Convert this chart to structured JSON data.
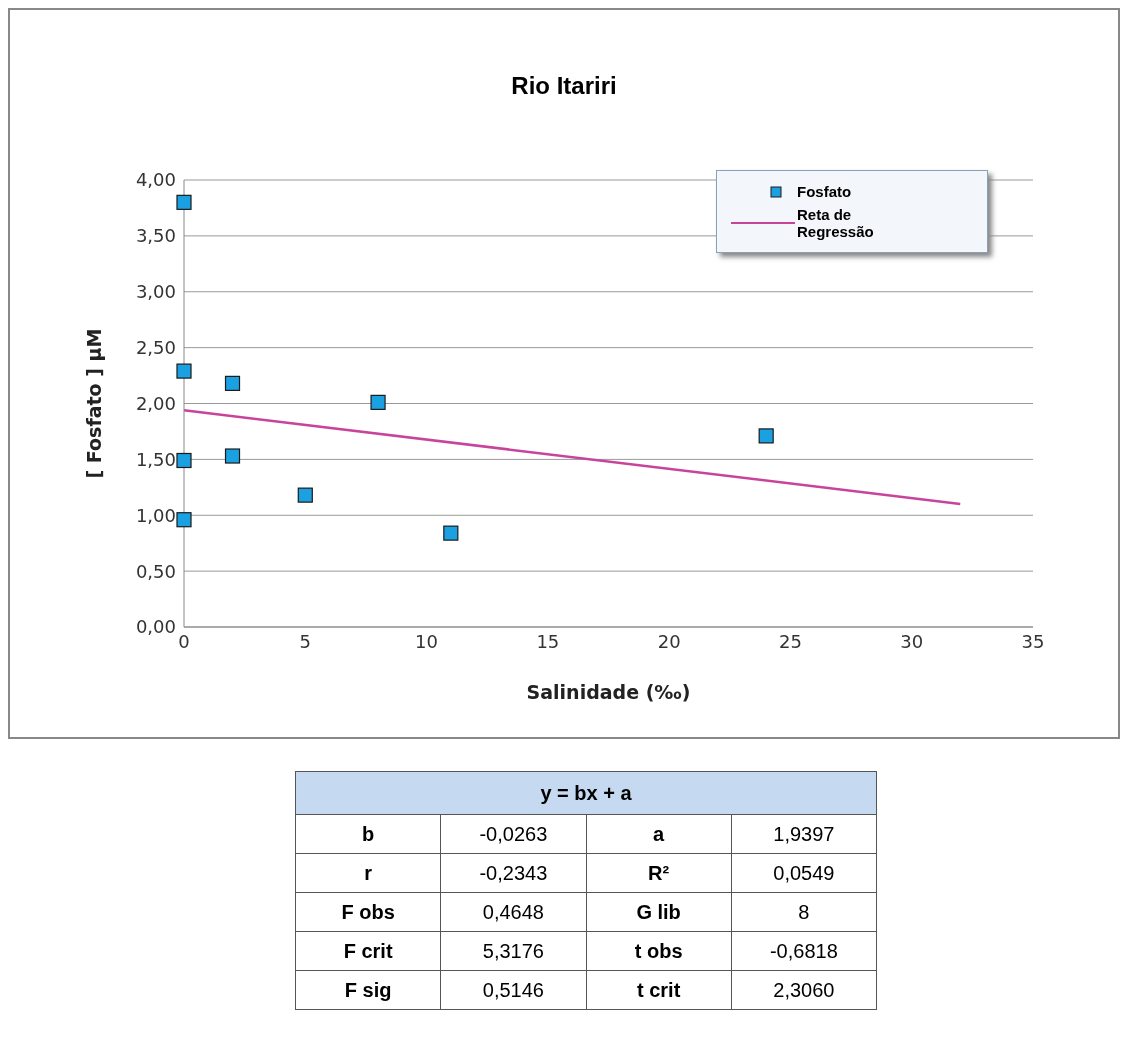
{
  "chart_data": {
    "type": "scatter",
    "title": "Rio Itariri",
    "xlabel": "Salinidade (‰)",
    "ylabel": "[ Fosfato ] µM",
    "xlim": [
      0,
      35
    ],
    "xticks": [
      0,
      5,
      10,
      15,
      20,
      25,
      30,
      35
    ],
    "ylim": [
      0,
      4
    ],
    "yticks": [
      {
        "value": 0,
        "label": "0,00"
      },
      {
        "value": 0.5,
        "label": "0,50"
      },
      {
        "value": 1,
        "label": "1,00"
      },
      {
        "value": 1.5,
        "label": "1,50"
      },
      {
        "value": 2,
        "label": "2,00"
      },
      {
        "value": 2.5,
        "label": "2,50"
      },
      {
        "value": 3,
        "label": "3,00"
      },
      {
        "value": 3.5,
        "label": "3,50"
      },
      {
        "value": 4,
        "label": "4,00"
      }
    ],
    "grid": "y",
    "legend": "top right",
    "series": [
      {
        "name": "Fosfato",
        "marker": "square",
        "color": "#1ba1e2",
        "x": [
          0,
          0,
          2,
          8,
          2,
          0,
          5,
          0,
          11,
          24
        ],
        "values": [
          3.8,
          2.29,
          2.18,
          2.01,
          1.53,
          1.49,
          1.18,
          0.96,
          0.84,
          1.71
        ]
      },
      {
        "name": "Reta de Regressão",
        "type": "line",
        "marker": "none",
        "color": "#c8449c",
        "x": [
          0,
          32
        ],
        "values": [
          1.94,
          1.1
        ]
      }
    ],
    "annotations": [
      "y = bx + a",
      "b",
      "-0,0263",
      "a",
      "1,9397",
      "r",
      "-0,2343",
      "R²",
      "0,0549",
      "F obs",
      "0,4648",
      "G lib",
      "8",
      "F crit",
      "5,3176",
      "t obs",
      "-0,6818",
      "F sig",
      "0,5146",
      "t crit",
      "2,3060"
    ]
  }
}
